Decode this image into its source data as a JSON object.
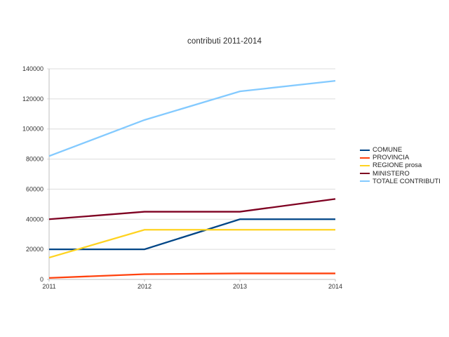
{
  "window": {
    "background": "#ffffff"
  },
  "chart_data": {
    "type": "line",
    "title": "contributi 2011-2014",
    "x": [
      "2011",
      "2012",
      "2013",
      "2014"
    ],
    "series": [
      {
        "name": "COMUNE",
        "color": "#004586",
        "values": [
          20000,
          20000,
          40000,
          40000
        ]
      },
      {
        "name": "PROVINCIA",
        "color": "#FF420E",
        "values": [
          1000,
          3500,
          4000,
          4000
        ]
      },
      {
        "name": "REGIONE prosa",
        "color": "#FFD320",
        "values": [
          14500,
          33000,
          33000,
          33000
        ]
      },
      {
        "name": "MINISTERO",
        "color": "#7E0021",
        "values": [
          40000,
          45000,
          45000,
          53500
        ]
      },
      {
        "name": "TOTALE CONTRIBUTI",
        "color": "#83CAFF",
        "values": [
          82000,
          106000,
          125000,
          132000
        ]
      }
    ],
    "ylim": [
      0,
      140000
    ],
    "yticks": [
      0,
      20000,
      40000,
      60000,
      80000,
      100000,
      120000,
      140000
    ],
    "grid": true,
    "legend_position": "right",
    "xlabel": "",
    "ylabel": ""
  }
}
